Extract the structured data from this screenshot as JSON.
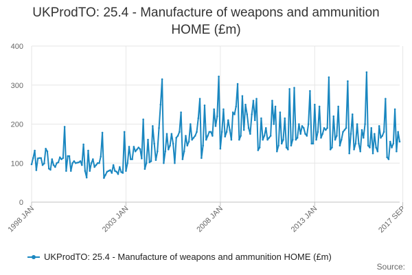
{
  "chart_data": {
    "type": "line",
    "title_lines": [
      "UKProdTO: 25.4 - Manufacture of weapons and ammunition",
      "HOME (£m)"
    ],
    "xlabel": "",
    "ylabel": "",
    "ylim": [
      0,
      400
    ],
    "y_ticks": [
      "0",
      "100",
      "200",
      "300",
      "400"
    ],
    "x_ticks": [
      {
        "label": "1998 JAN",
        "index": 0
      },
      {
        "label": "2003 JAN",
        "index": 60
      },
      {
        "label": "2008 JAN",
        "index": 120
      },
      {
        "label": "2013 JAN",
        "index": 180
      },
      {
        "label": "2017 SEP",
        "index": 236
      }
    ],
    "grid": true,
    "legend_position": "bottom",
    "series": [
      {
        "name": "UKProdTO: 25.4 - Manufacture of weapons and ammunition HOME (£m)",
        "color": "#1a87c0",
        "values": [
          97,
          113,
          132,
          82,
          112,
          113,
          113,
          95,
          99,
          137,
          130,
          86,
          83,
          110,
          95,
          90,
          100,
          102,
          115,
          110,
          113,
          193,
          80,
          118,
          118,
          80,
          100,
          105,
          100,
          101,
          102,
          105,
          95,
          148,
          80,
          63,
          132,
          80,
          100,
          110,
          90,
          95,
          100,
          100,
          117,
          178,
          62,
          70,
          78,
          80,
          82,
          75,
          95,
          80,
          78,
          72,
          90,
          77,
          75,
          180,
          80,
          100,
          142,
          110,
          110,
          142,
          130,
          135,
          140,
          136,
          112,
          212,
          85,
          100,
          160,
          102,
          105,
          195,
          150,
          108,
          130,
          190,
          250,
          315,
          100,
          130,
          175,
          135,
          145,
          175,
          150,
          100,
          165,
          170,
          180,
          230,
          110,
          130,
          170,
          145,
          155,
          200,
          160,
          165,
          170,
          180,
          215,
          265,
          113,
          145,
          248,
          160,
          170,
          180,
          180,
          170,
          238,
          195,
          220,
          322,
          137,
          180,
          238,
          168,
          180,
          210,
          185,
          160,
          230,
          225,
          245,
          303,
          160,
          170,
          272,
          185,
          250,
          225,
          190,
          175,
          225,
          260,
          210,
          265,
          133,
          140,
          215,
          160,
          170,
          190,
          160,
          165,
          170,
          260,
          200,
          245,
          130,
          145,
          230,
          150,
          160,
          215,
          140,
          135,
          290,
          145,
          160,
          293,
          160,
          165,
          200,
          175,
          195,
          190,
          175,
          170,
          200,
          285,
          150,
          150,
          250,
          160,
          180,
          245,
          165,
          175,
          190,
          185,
          190,
          320,
          135,
          140,
          220,
          160,
          170,
          245,
          145,
          160,
          180,
          185,
          190,
          310,
          125,
          175,
          225,
          135,
          150,
          200,
          150,
          130,
          185,
          165,
          200,
          333,
          145,
          140,
          190,
          125,
          175,
          140,
          130,
          195,
          165,
          170,
          180,
          265,
          115,
          110,
          155,
          140,
          150,
          238,
          130,
          180,
          155
        ]
      }
    ]
  },
  "source_label": "Source:"
}
